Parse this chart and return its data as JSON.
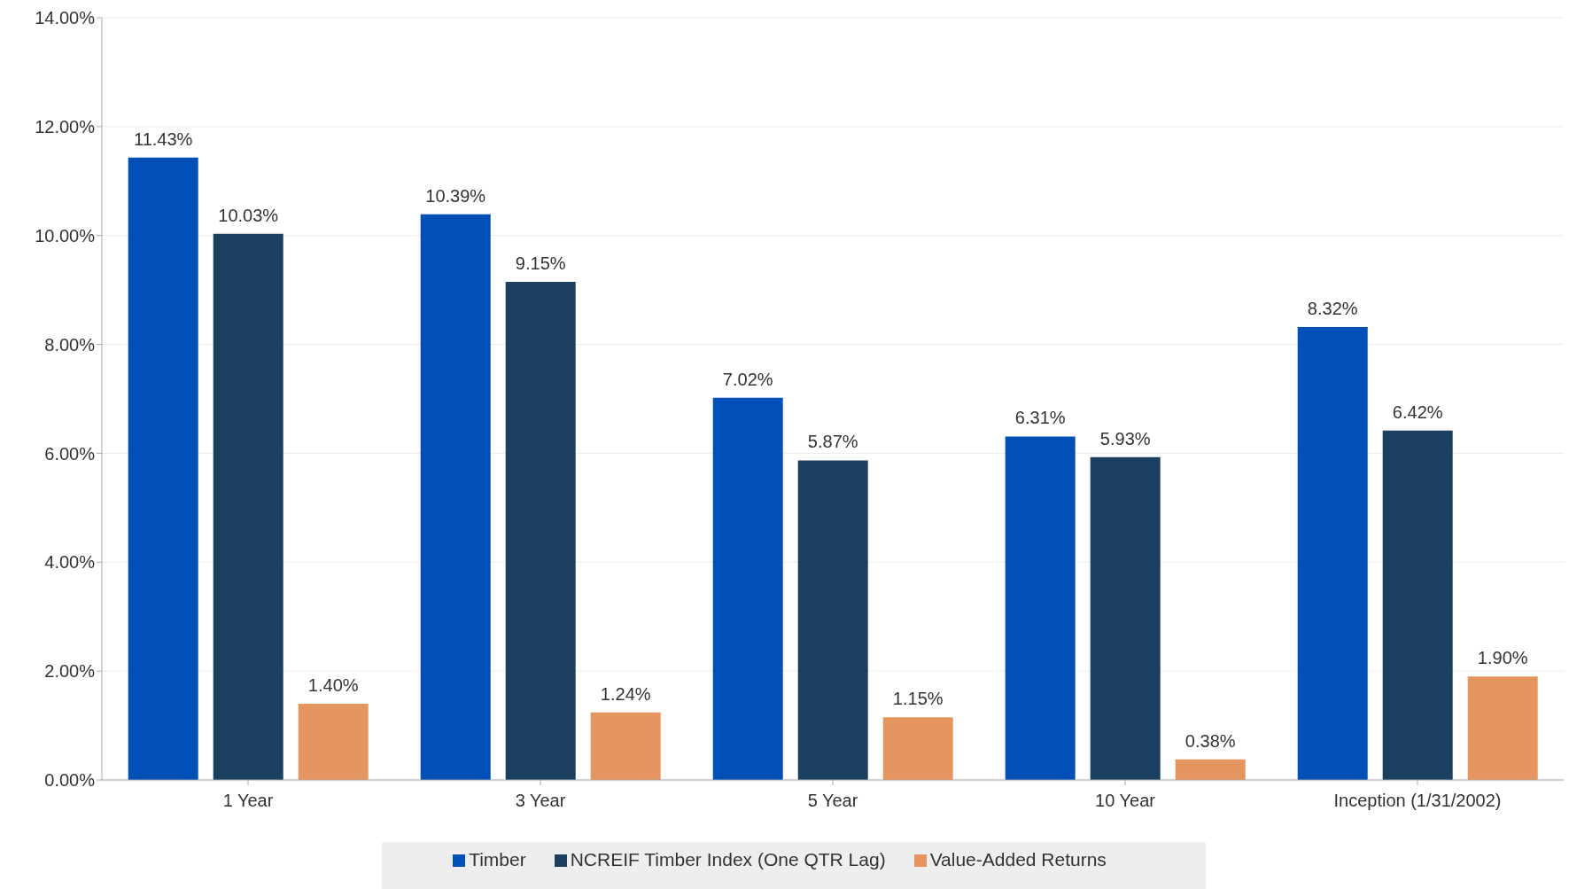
{
  "chart_data": {
    "type": "bar",
    "categories": [
      "1 Year",
      "3 Year",
      "5 Year",
      "10 Year",
      "Inception (1/31/2002)"
    ],
    "series": [
      {
        "name": "Timber",
        "color": "#0050b8",
        "values": [
          11.43,
          10.39,
          7.02,
          6.31,
          8.32
        ],
        "value_labels": [
          "11.43%",
          "10.39%",
          "7.02%",
          "6.31%",
          "8.32%"
        ]
      },
      {
        "name": "NCREIF Timber Index (One QTR Lag)",
        "color": "#1b3f5e",
        "values": [
          10.03,
          9.15,
          5.87,
          5.93,
          6.42
        ],
        "value_labels": [
          "10.03%",
          "9.15%",
          "5.87%",
          "5.93%",
          "6.42%"
        ]
      },
      {
        "name": "Value-Added Returns",
        "color": "#e5955f",
        "values": [
          1.4,
          1.24,
          1.15,
          0.38,
          1.9
        ],
        "value_labels": [
          "1.40%",
          "1.24%",
          "1.15%",
          "0.38%",
          "1.90%"
        ]
      }
    ],
    "ylim": [
      0,
      14
    ],
    "yticks": [
      {
        "value": 0,
        "label": "0.00%"
      },
      {
        "value": 2,
        "label": "2.00%"
      },
      {
        "value": 4,
        "label": "4.00%"
      },
      {
        "value": 6,
        "label": "6.00%"
      },
      {
        "value": 8,
        "label": "8.00%"
      },
      {
        "value": 10,
        "label": "10.00%"
      },
      {
        "value": 12,
        "label": "12.00%"
      },
      {
        "value": 14,
        "label": "14.00%"
      }
    ],
    "grid": "y",
    "legend": "bottom"
  }
}
